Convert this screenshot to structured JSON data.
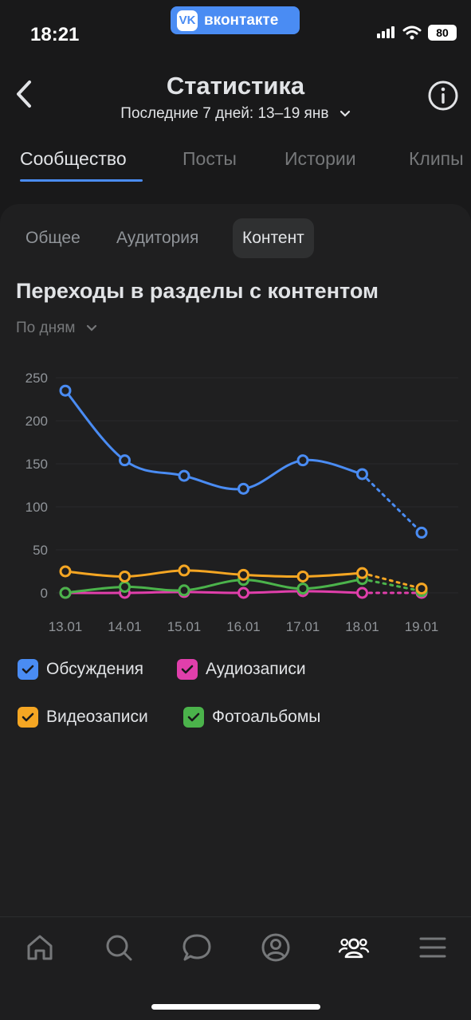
{
  "status": {
    "time": "18:21",
    "app_pill": "вконтакте",
    "battery": "80"
  },
  "header": {
    "title": "Статистика",
    "subtitle": "Последние 7 дней: 13–19 янв"
  },
  "top_tabs": [
    "Сообщество",
    "Посты",
    "Истории",
    "Клипы"
  ],
  "sub_tabs": [
    "Общее",
    "Аудитория",
    "Контент"
  ],
  "section": {
    "title": "Переходы в разделы с контентом",
    "period": "По дням"
  },
  "colors": {
    "blue": "#4a8cf3",
    "orange": "#f5a623",
    "green": "#4bb34b",
    "pink": "#e03fab",
    "accent": "#4a8cf3"
  },
  "chart_data": {
    "type": "line",
    "categories": [
      "13.01",
      "14.01",
      "15.01",
      "16.01",
      "17.01",
      "18.01",
      "19.01"
    ],
    "ylim": [
      0,
      250
    ],
    "yticks": [
      0,
      50,
      100,
      150,
      200,
      250
    ],
    "partial_last_point": true,
    "series": [
      {
        "name": "Обсуждения",
        "color": "#4a8cf3",
        "values": [
          235,
          154,
          136,
          121,
          154,
          138,
          70
        ]
      },
      {
        "name": "Видеозаписи",
        "color": "#f5a623",
        "values": [
          25,
          19,
          26,
          21,
          19,
          23,
          5
        ]
      },
      {
        "name": "Фотоальбомы",
        "color": "#4bb34b",
        "values": [
          0,
          7,
          3,
          15,
          5,
          16,
          2
        ]
      },
      {
        "name": "Аудиозаписи",
        "color": "#e03fab",
        "values": [
          0,
          0,
          1,
          0,
          2,
          0,
          0
        ]
      }
    ]
  },
  "legend": [
    {
      "label": "Обсуждения",
      "color": "#4a8cf3"
    },
    {
      "label": "Аудиозаписи",
      "color": "#e03fab"
    },
    {
      "label": "Видеозаписи",
      "color": "#f5a623"
    },
    {
      "label": "Фотоальбомы",
      "color": "#4bb34b"
    }
  ],
  "tabbar": [
    "home-icon",
    "search-icon",
    "messages-icon",
    "profile-icon",
    "community-icon",
    "menu-icon"
  ]
}
